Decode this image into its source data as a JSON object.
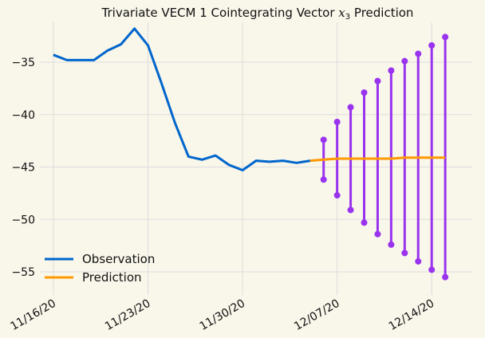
{
  "chart_data": {
    "type": "line",
    "title": "Trivariate VECM 1 Cointegrating Vector",
    "title_math": "x",
    "title_math_sub": "3",
    "title_tail": "Prediction",
    "xlabel": "",
    "ylabel": "",
    "x_start": "2020-11-16",
    "xlim": [
      "2020-11-15",
      "2020-12-17"
    ],
    "ylim": [
      -57.2,
      -31.2
    ],
    "x_tick_labels": [
      "11/16/20",
      "11/23/20",
      "11/30/20",
      "12/07/20",
      "12/14/20"
    ],
    "x_ticks": [
      "2020-11-16",
      "2020-11-23",
      "2020-11-30",
      "2020-12-07",
      "2020-12-14"
    ],
    "y_ticks": [
      -35,
      -40,
      -45,
      -50,
      -55
    ],
    "y_tick_labels": [
      "−35",
      "−40",
      "−45",
      "−50",
      "−55"
    ],
    "grid": true,
    "legend_position": "lower-left",
    "series": [
      {
        "name": "Observation",
        "color": "#0066cc",
        "x": [
          "2020-11-16",
          "2020-11-17",
          "2020-11-18",
          "2020-11-19",
          "2020-11-20",
          "2020-11-21",
          "2020-11-22",
          "2020-11-23",
          "2020-11-24",
          "2020-11-25",
          "2020-11-26",
          "2020-11-27",
          "2020-11-28",
          "2020-11-29",
          "2020-11-30",
          "2020-12-01",
          "2020-12-02",
          "2020-12-03",
          "2020-12-04",
          "2020-12-05"
        ],
        "values": [
          -34.3,
          -34.8,
          -34.8,
          -34.8,
          -33.9,
          -33.3,
          -31.8,
          -33.4,
          -37.0,
          -40.8,
          -44.0,
          -44.3,
          -43.9,
          -44.8,
          -45.3,
          -44.4,
          -44.5,
          -44.4,
          -44.6,
          -44.4
        ]
      },
      {
        "name": "Prediction",
        "color": "#ff9900",
        "x": [
          "2020-12-05",
          "2020-12-06",
          "2020-12-07",
          "2020-12-08",
          "2020-12-09",
          "2020-12-10",
          "2020-12-11",
          "2020-12-12",
          "2020-12-13",
          "2020-12-14",
          "2020-12-15"
        ],
        "values": [
          -44.4,
          -44.3,
          -44.2,
          -44.2,
          -44.2,
          -44.2,
          -44.2,
          -44.1,
          -44.1,
          -44.1,
          -44.1
        ]
      }
    ],
    "intervals": {
      "color": "#9933ee",
      "x": [
        "2020-12-06",
        "2020-12-07",
        "2020-12-08",
        "2020-12-09",
        "2020-12-10",
        "2020-12-11",
        "2020-12-12",
        "2020-12-13",
        "2020-12-14",
        "2020-12-15"
      ],
      "upper": [
        -42.4,
        -40.7,
        -39.3,
        -37.9,
        -36.8,
        -35.8,
        -34.9,
        -34.2,
        -33.4,
        -32.6
      ],
      "lower": [
        -46.2,
        -47.7,
        -49.1,
        -50.3,
        -51.4,
        -52.4,
        -53.2,
        -54.0,
        -54.8,
        -55.5
      ]
    }
  }
}
